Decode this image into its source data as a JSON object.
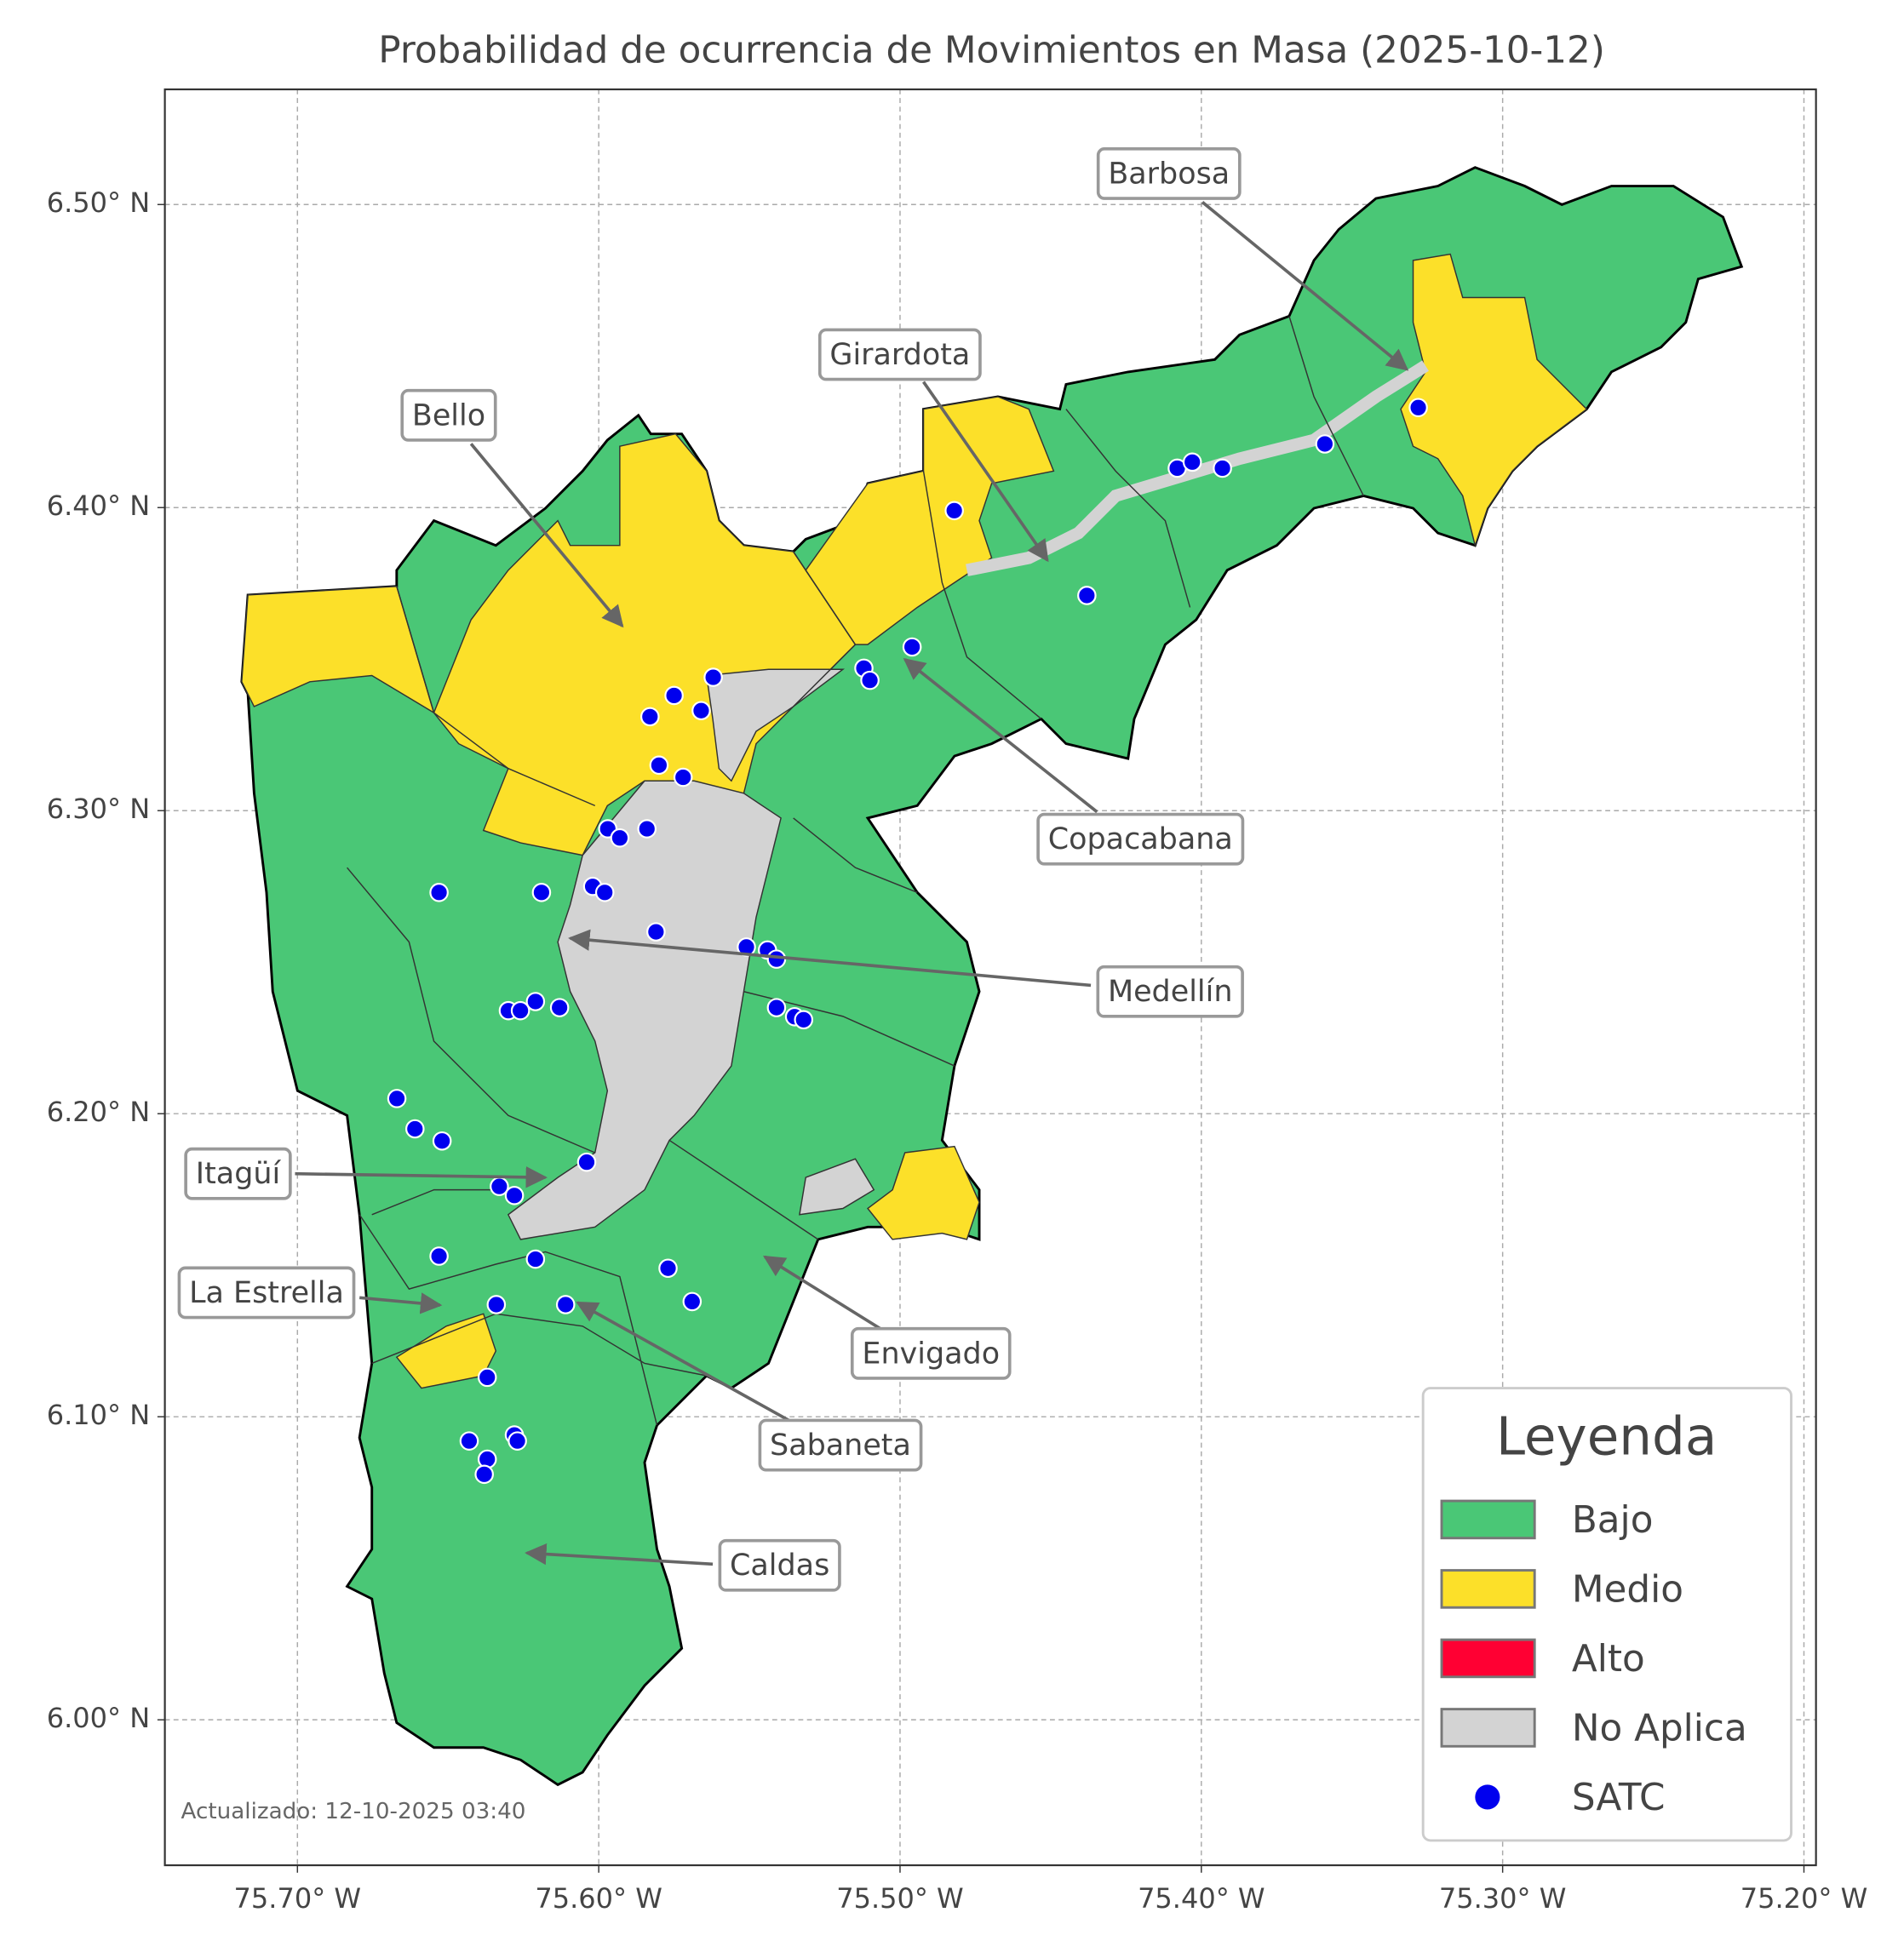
{
  "title": "Probabilidad de ocurrencia de Movimientos en Masa (2025-10-12)",
  "map": {
    "xlim": [
      -75.744,
      -75.196
    ],
    "ylim": [
      5.952,
      6.538
    ],
    "grid": true,
    "xticks": [
      {
        "value": -75.7,
        "label": "75.70° W"
      },
      {
        "value": -75.6,
        "label": "75.60° W"
      },
      {
        "value": -75.5,
        "label": "75.50° W"
      },
      {
        "value": -75.4,
        "label": "75.40° W"
      },
      {
        "value": -75.3,
        "label": "75.30° W"
      },
      {
        "value": -75.2,
        "label": "75.20° W"
      }
    ],
    "yticks": [
      {
        "value": 6.5,
        "label": "6.50° N"
      },
      {
        "value": 6.4,
        "label": "6.40° N"
      },
      {
        "value": 6.3,
        "label": "6.30° N"
      },
      {
        "value": 6.2,
        "label": "6.20° N"
      },
      {
        "value": 6.1,
        "label": "6.10° N"
      },
      {
        "value": 6.0,
        "label": "6.00° N"
      }
    ],
    "satc": {
      "color": "#0000ee",
      "lon": [
        -75.328,
        -75.359,
        -75.408,
        -75.403,
        -75.393,
        -75.482,
        -75.438,
        -75.496,
        -75.512,
        -75.51,
        -75.562,
        -75.575,
        -75.583,
        -75.566,
        -75.58,
        -75.572,
        -75.597,
        -75.593,
        -75.584,
        -75.653,
        -75.619,
        -75.602,
        -75.598,
        -75.581,
        -75.551,
        -75.544,
        -75.541,
        -75.541,
        -75.535,
        -75.532,
        -75.63,
        -75.626,
        -75.621,
        -75.613,
        -75.667,
        -75.661,
        -75.652,
        -75.604,
        -75.633,
        -75.628,
        -75.653,
        -75.621,
        -75.634,
        -75.611,
        -75.577,
        -75.569,
        -75.637,
        -75.643,
        -75.628,
        -75.627,
        -75.637,
        -75.638
      ],
      "lat": [
        6.433,
        6.421,
        6.413,
        6.415,
        6.413,
        6.399,
        6.371,
        6.354,
        6.347,
        6.343,
        6.344,
        6.338,
        6.331,
        6.333,
        6.315,
        6.311,
        6.294,
        6.291,
        6.294,
        6.273,
        6.273,
        6.275,
        6.273,
        6.26,
        6.255,
        6.254,
        6.251,
        6.235,
        6.232,
        6.231,
        6.234,
        6.234,
        6.237,
        6.235,
        6.205,
        6.195,
        6.191,
        6.184,
        6.176,
        6.173,
        6.153,
        6.152,
        6.137,
        6.137,
        6.149,
        6.138,
        6.113,
        6.092,
        6.094,
        6.092,
        6.086,
        6.081
      ]
    }
  },
  "annotations": [
    "Barbosa",
    "Girardota",
    "Bello",
    "Copacabana",
    "Medellín",
    "Itagüí",
    "La Estrella",
    "Envigado",
    "Sabaneta",
    "Caldas"
  ],
  "legend": {
    "title": "Leyenda",
    "items": [
      {
        "label": "Bajo",
        "color": "#4ac776"
      },
      {
        "label": "Medio",
        "color": "#fce029"
      },
      {
        "label": "Alto",
        "color": "#ff0033"
      },
      {
        "label": "No Aplica",
        "color": "#d3d3d3"
      },
      {
        "label": "SATC",
        "color": "#0000ee"
      }
    ]
  },
  "footer": "Actualizado: 12-10-2025 03:40"
}
